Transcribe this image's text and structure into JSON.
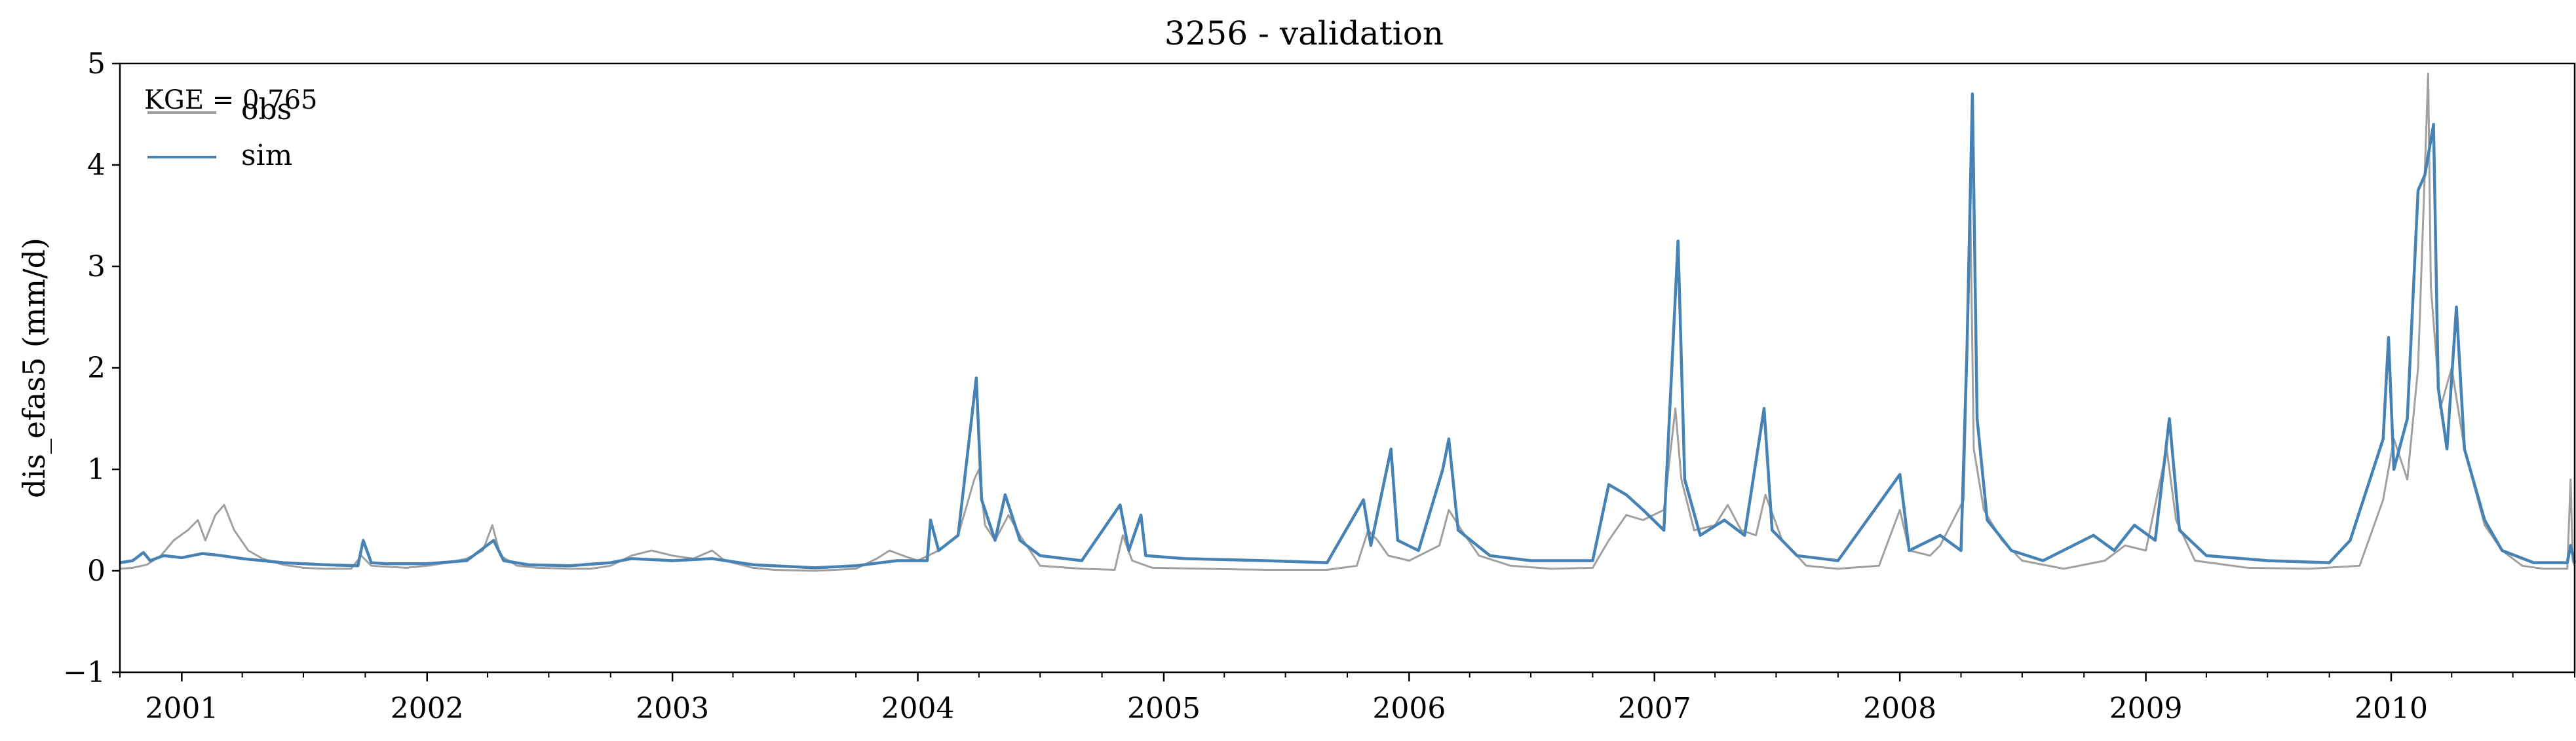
{
  "chart_data": {
    "type": "line",
    "title": "3256 - validation",
    "xlabel": "",
    "ylabel": "dis_efas5 (mm/d)",
    "xlim": [
      "2000-10-01",
      "2010-10-01"
    ],
    "ylim": [
      -1,
      5
    ],
    "yticks": [
      -1,
      0,
      1,
      2,
      3,
      4,
      5
    ],
    "ytick_labels": [
      "−1",
      "0",
      "1",
      "2",
      "3",
      "4",
      "5"
    ],
    "xticks": [
      {
        "label": "2001",
        "date": "2001-01-01"
      },
      {
        "label": "2002",
        "date": "2002-01-01"
      },
      {
        "label": "2003",
        "date": "2003-01-01"
      },
      {
        "label": "2004",
        "date": "2004-01-01"
      },
      {
        "label": "2005",
        "date": "2005-01-01"
      },
      {
        "label": "2006",
        "date": "2006-01-01"
      },
      {
        "label": "2007",
        "date": "2007-01-01"
      },
      {
        "label": "2008",
        "date": "2008-01-01"
      },
      {
        "label": "2009",
        "date": "2009-01-01"
      },
      {
        "label": "2010",
        "date": "2010-01-01"
      }
    ],
    "grid": false,
    "legend_position": "top-left",
    "annotation": "KGE = 0.765",
    "series": [
      {
        "name": "obs",
        "color": "#a0a0a0",
        "points": [
          [
            "2000-10-01",
            0.02
          ],
          [
            "2000-10-20",
            0.03
          ],
          [
            "2000-11-10",
            0.06
          ],
          [
            "2000-12-01",
            0.15
          ],
          [
            "2000-12-20",
            0.3
          ],
          [
            "2001-01-10",
            0.4
          ],
          [
            "2001-01-25",
            0.5
          ],
          [
            "2001-02-05",
            0.3
          ],
          [
            "2001-02-20",
            0.55
          ],
          [
            "2001-03-05",
            0.65
          ],
          [
            "2001-03-20",
            0.4
          ],
          [
            "2001-04-10",
            0.2
          ],
          [
            "2001-05-01",
            0.12
          ],
          [
            "2001-06-01",
            0.06
          ],
          [
            "2001-07-01",
            0.03
          ],
          [
            "2001-08-01",
            0.02
          ],
          [
            "2001-09-10",
            0.02
          ],
          [
            "2001-09-25",
            0.15
          ],
          [
            "2001-10-10",
            0.05
          ],
          [
            "2001-11-01",
            0.04
          ],
          [
            "2001-12-01",
            0.03
          ],
          [
            "2002-01-01",
            0.05
          ],
          [
            "2002-02-01",
            0.08
          ],
          [
            "2002-03-01",
            0.12
          ],
          [
            "2002-03-25",
            0.2
          ],
          [
            "2002-04-08",
            0.45
          ],
          [
            "2002-04-20",
            0.15
          ],
          [
            "2002-05-15",
            0.05
          ],
          [
            "2002-06-15",
            0.03
          ],
          [
            "2002-08-01",
            0.02
          ],
          [
            "2002-09-01",
            0.02
          ],
          [
            "2002-10-01",
            0.05
          ],
          [
            "2002-11-01",
            0.15
          ],
          [
            "2002-12-01",
            0.2
          ],
          [
            "2003-01-01",
            0.15
          ],
          [
            "2003-02-01",
            0.12
          ],
          [
            "2003-03-01",
            0.2
          ],
          [
            "2003-03-20",
            0.1
          ],
          [
            "2003-05-01",
            0.03
          ],
          [
            "2003-06-01",
            0.01
          ],
          [
            "2003-08-01",
            0.0
          ],
          [
            "2003-10-01",
            0.02
          ],
          [
            "2003-11-01",
            0.12
          ],
          [
            "2003-11-20",
            0.2
          ],
          [
            "2003-12-10",
            0.15
          ],
          [
            "2004-01-01",
            0.1
          ],
          [
            "2004-02-01",
            0.2
          ],
          [
            "2004-03-01",
            0.35
          ],
          [
            "2004-03-25",
            0.9
          ],
          [
            "2004-04-01",
            1.0
          ],
          [
            "2004-04-10",
            0.45
          ],
          [
            "2004-04-25",
            0.3
          ],
          [
            "2004-05-15",
            0.55
          ],
          [
            "2004-06-01",
            0.35
          ],
          [
            "2004-07-01",
            0.05
          ],
          [
            "2004-09-01",
            0.02
          ],
          [
            "2004-10-20",
            0.01
          ],
          [
            "2004-11-01",
            0.35
          ],
          [
            "2004-11-15",
            0.1
          ],
          [
            "2004-12-15",
            0.03
          ],
          [
            "2005-03-01",
            0.02
          ],
          [
            "2005-06-01",
            0.01
          ],
          [
            "2005-09-01",
            0.01
          ],
          [
            "2005-10-15",
            0.05
          ],
          [
            "2005-11-01",
            0.4
          ],
          [
            "2005-11-15",
            0.3
          ],
          [
            "2005-12-01",
            0.15
          ],
          [
            "2006-01-01",
            0.1
          ],
          [
            "2006-02-15",
            0.25
          ],
          [
            "2006-03-01",
            0.6
          ],
          [
            "2006-03-20",
            0.4
          ],
          [
            "2006-04-15",
            0.15
          ],
          [
            "2006-06-01",
            0.05
          ],
          [
            "2006-08-01",
            0.02
          ],
          [
            "2006-10-01",
            0.03
          ],
          [
            "2006-10-25",
            0.3
          ],
          [
            "2006-11-20",
            0.55
          ],
          [
            "2006-12-15",
            0.5
          ],
          [
            "2007-01-15",
            0.6
          ],
          [
            "2007-02-01",
            1.6
          ],
          [
            "2007-02-10",
            0.9
          ],
          [
            "2007-03-01",
            0.4
          ],
          [
            "2007-04-01",
            0.45
          ],
          [
            "2007-04-20",
            0.65
          ],
          [
            "2007-05-10",
            0.4
          ],
          [
            "2007-06-01",
            0.35
          ],
          [
            "2007-06-15",
            0.75
          ],
          [
            "2007-07-10",
            0.3
          ],
          [
            "2007-08-15",
            0.05
          ],
          [
            "2007-10-01",
            0.02
          ],
          [
            "2007-12-01",
            0.05
          ],
          [
            "2008-01-01",
            0.6
          ],
          [
            "2008-01-15",
            0.2
          ],
          [
            "2008-02-15",
            0.15
          ],
          [
            "2008-03-01",
            0.25
          ],
          [
            "2008-04-05",
            0.7
          ],
          [
            "2008-04-15",
            3.5
          ],
          [
            "2008-04-20",
            1.2
          ],
          [
            "2008-05-05",
            0.6
          ],
          [
            "2008-06-01",
            0.3
          ],
          [
            "2008-07-01",
            0.1
          ],
          [
            "2008-09-01",
            0.02
          ],
          [
            "2008-11-01",
            0.1
          ],
          [
            "2008-12-01",
            0.25
          ],
          [
            "2009-01-01",
            0.2
          ],
          [
            "2009-02-01",
            1.2
          ],
          [
            "2009-02-15",
            0.5
          ],
          [
            "2009-03-15",
            0.1
          ],
          [
            "2009-06-01",
            0.03
          ],
          [
            "2009-09-01",
            0.02
          ],
          [
            "2009-11-15",
            0.05
          ],
          [
            "2009-12-20",
            0.7
          ],
          [
            "2010-01-05",
            1.3
          ],
          [
            "2010-01-25",
            0.9
          ],
          [
            "2010-02-10",
            2.0
          ],
          [
            "2010-02-25",
            4.9
          ],
          [
            "2010-03-01",
            2.8
          ],
          [
            "2010-03-15",
            1.6
          ],
          [
            "2010-04-01",
            2.0
          ],
          [
            "2010-04-20",
            1.2
          ],
          [
            "2010-05-20",
            0.45
          ],
          [
            "2010-06-15",
            0.2
          ],
          [
            "2010-07-15",
            0.05
          ],
          [
            "2010-08-15",
            0.02
          ],
          [
            "2010-09-20",
            0.02
          ],
          [
            "2010-09-25",
            0.9
          ],
          [
            "2010-09-28",
            0.1
          ],
          [
            "2010-10-01",
            0.05
          ]
        ]
      },
      {
        "name": "sim",
        "color": "#4682b4",
        "points": [
          [
            "2000-10-01",
            0.08
          ],
          [
            "2000-10-20",
            0.1
          ],
          [
            "2000-11-05",
            0.18
          ],
          [
            "2000-11-15",
            0.1
          ],
          [
            "2000-12-05",
            0.15
          ],
          [
            "2001-01-01",
            0.13
          ],
          [
            "2001-02-01",
            0.17
          ],
          [
            "2001-03-01",
            0.15
          ],
          [
            "2001-04-01",
            0.12
          ],
          [
            "2001-05-01",
            0.1
          ],
          [
            "2001-06-01",
            0.08
          ],
          [
            "2001-08-01",
            0.06
          ],
          [
            "2001-09-20",
            0.05
          ],
          [
            "2001-09-28",
            0.3
          ],
          [
            "2001-10-10",
            0.08
          ],
          [
            "2001-11-01",
            0.07
          ],
          [
            "2002-01-01",
            0.07
          ],
          [
            "2002-03-01",
            0.1
          ],
          [
            "2002-04-10",
            0.3
          ],
          [
            "2002-04-25",
            0.1
          ],
          [
            "2002-06-01",
            0.06
          ],
          [
            "2002-08-01",
            0.05
          ],
          [
            "2002-10-01",
            0.08
          ],
          [
            "2002-11-01",
            0.12
          ],
          [
            "2003-01-01",
            0.1
          ],
          [
            "2003-03-01",
            0.12
          ],
          [
            "2003-05-01",
            0.06
          ],
          [
            "2003-08-01",
            0.03
          ],
          [
            "2003-10-01",
            0.05
          ],
          [
            "2003-12-01",
            0.1
          ],
          [
            "2004-01-15",
            0.1
          ],
          [
            "2004-01-20",
            0.5
          ],
          [
            "2004-02-01",
            0.2
          ],
          [
            "2004-03-01",
            0.35
          ],
          [
            "2004-03-28",
            1.9
          ],
          [
            "2004-04-05",
            0.7
          ],
          [
            "2004-04-25",
            0.3
          ],
          [
            "2004-05-10",
            0.75
          ],
          [
            "2004-06-01",
            0.3
          ],
          [
            "2004-07-01",
            0.15
          ],
          [
            "2004-09-01",
            0.1
          ],
          [
            "2004-10-28",
            0.65
          ],
          [
            "2004-11-10",
            0.2
          ],
          [
            "2004-11-28",
            0.55
          ],
          [
            "2004-12-05",
            0.15
          ],
          [
            "2005-02-01",
            0.12
          ],
          [
            "2005-06-01",
            0.1
          ],
          [
            "2005-09-01",
            0.08
          ],
          [
            "2005-10-25",
            0.7
          ],
          [
            "2005-11-05",
            0.25
          ],
          [
            "2005-12-05",
            1.2
          ],
          [
            "2005-12-15",
            0.3
          ],
          [
            "2006-01-15",
            0.2
          ],
          [
            "2006-02-20",
            1.0
          ],
          [
            "2006-03-01",
            1.3
          ],
          [
            "2006-03-15",
            0.4
          ],
          [
            "2006-05-01",
            0.15
          ],
          [
            "2006-07-01",
            0.1
          ],
          [
            "2006-10-01",
            0.1
          ],
          [
            "2006-10-25",
            0.85
          ],
          [
            "2006-11-20",
            0.75
          ],
          [
            "2006-12-15",
            0.6
          ],
          [
            "2007-01-15",
            0.4
          ],
          [
            "2007-02-05",
            3.25
          ],
          [
            "2007-02-15",
            0.9
          ],
          [
            "2007-03-10",
            0.35
          ],
          [
            "2007-04-15",
            0.5
          ],
          [
            "2007-05-15",
            0.35
          ],
          [
            "2007-06-13",
            1.6
          ],
          [
            "2007-06-25",
            0.4
          ],
          [
            "2007-08-01",
            0.15
          ],
          [
            "2007-10-01",
            0.1
          ],
          [
            "2008-01-01",
            0.95
          ],
          [
            "2008-01-15",
            0.2
          ],
          [
            "2008-03-01",
            0.35
          ],
          [
            "2008-04-01",
            0.2
          ],
          [
            "2008-04-10",
            2.2
          ],
          [
            "2008-04-18",
            4.7
          ],
          [
            "2008-04-25",
            1.5
          ],
          [
            "2008-05-10",
            0.5
          ],
          [
            "2008-06-15",
            0.2
          ],
          [
            "2008-08-01",
            0.1
          ],
          [
            "2008-10-15",
            0.35
          ],
          [
            "2008-11-15",
            0.2
          ],
          [
            "2008-12-15",
            0.45
          ],
          [
            "2009-01-15",
            0.3
          ],
          [
            "2009-02-05",
            1.5
          ],
          [
            "2009-02-20",
            0.4
          ],
          [
            "2009-04-01",
            0.15
          ],
          [
            "2009-07-01",
            0.1
          ],
          [
            "2009-10-01",
            0.08
          ],
          [
            "2009-11-01",
            0.3
          ],
          [
            "2009-12-20",
            1.3
          ],
          [
            "2009-12-28",
            2.3
          ],
          [
            "2010-01-05",
            1.0
          ],
          [
            "2010-01-25",
            1.5
          ],
          [
            "2010-02-10",
            3.75
          ],
          [
            "2010-02-20",
            3.9
          ],
          [
            "2010-03-05",
            4.4
          ],
          [
            "2010-03-12",
            1.8
          ],
          [
            "2010-03-25",
            1.2
          ],
          [
            "2010-04-08",
            2.6
          ],
          [
            "2010-04-20",
            1.2
          ],
          [
            "2010-05-20",
            0.5
          ],
          [
            "2010-06-15",
            0.2
          ],
          [
            "2010-08-01",
            0.08
          ],
          [
            "2010-09-20",
            0.08
          ],
          [
            "2010-09-25",
            0.25
          ],
          [
            "2010-10-01",
            0.08
          ]
        ]
      }
    ]
  }
}
